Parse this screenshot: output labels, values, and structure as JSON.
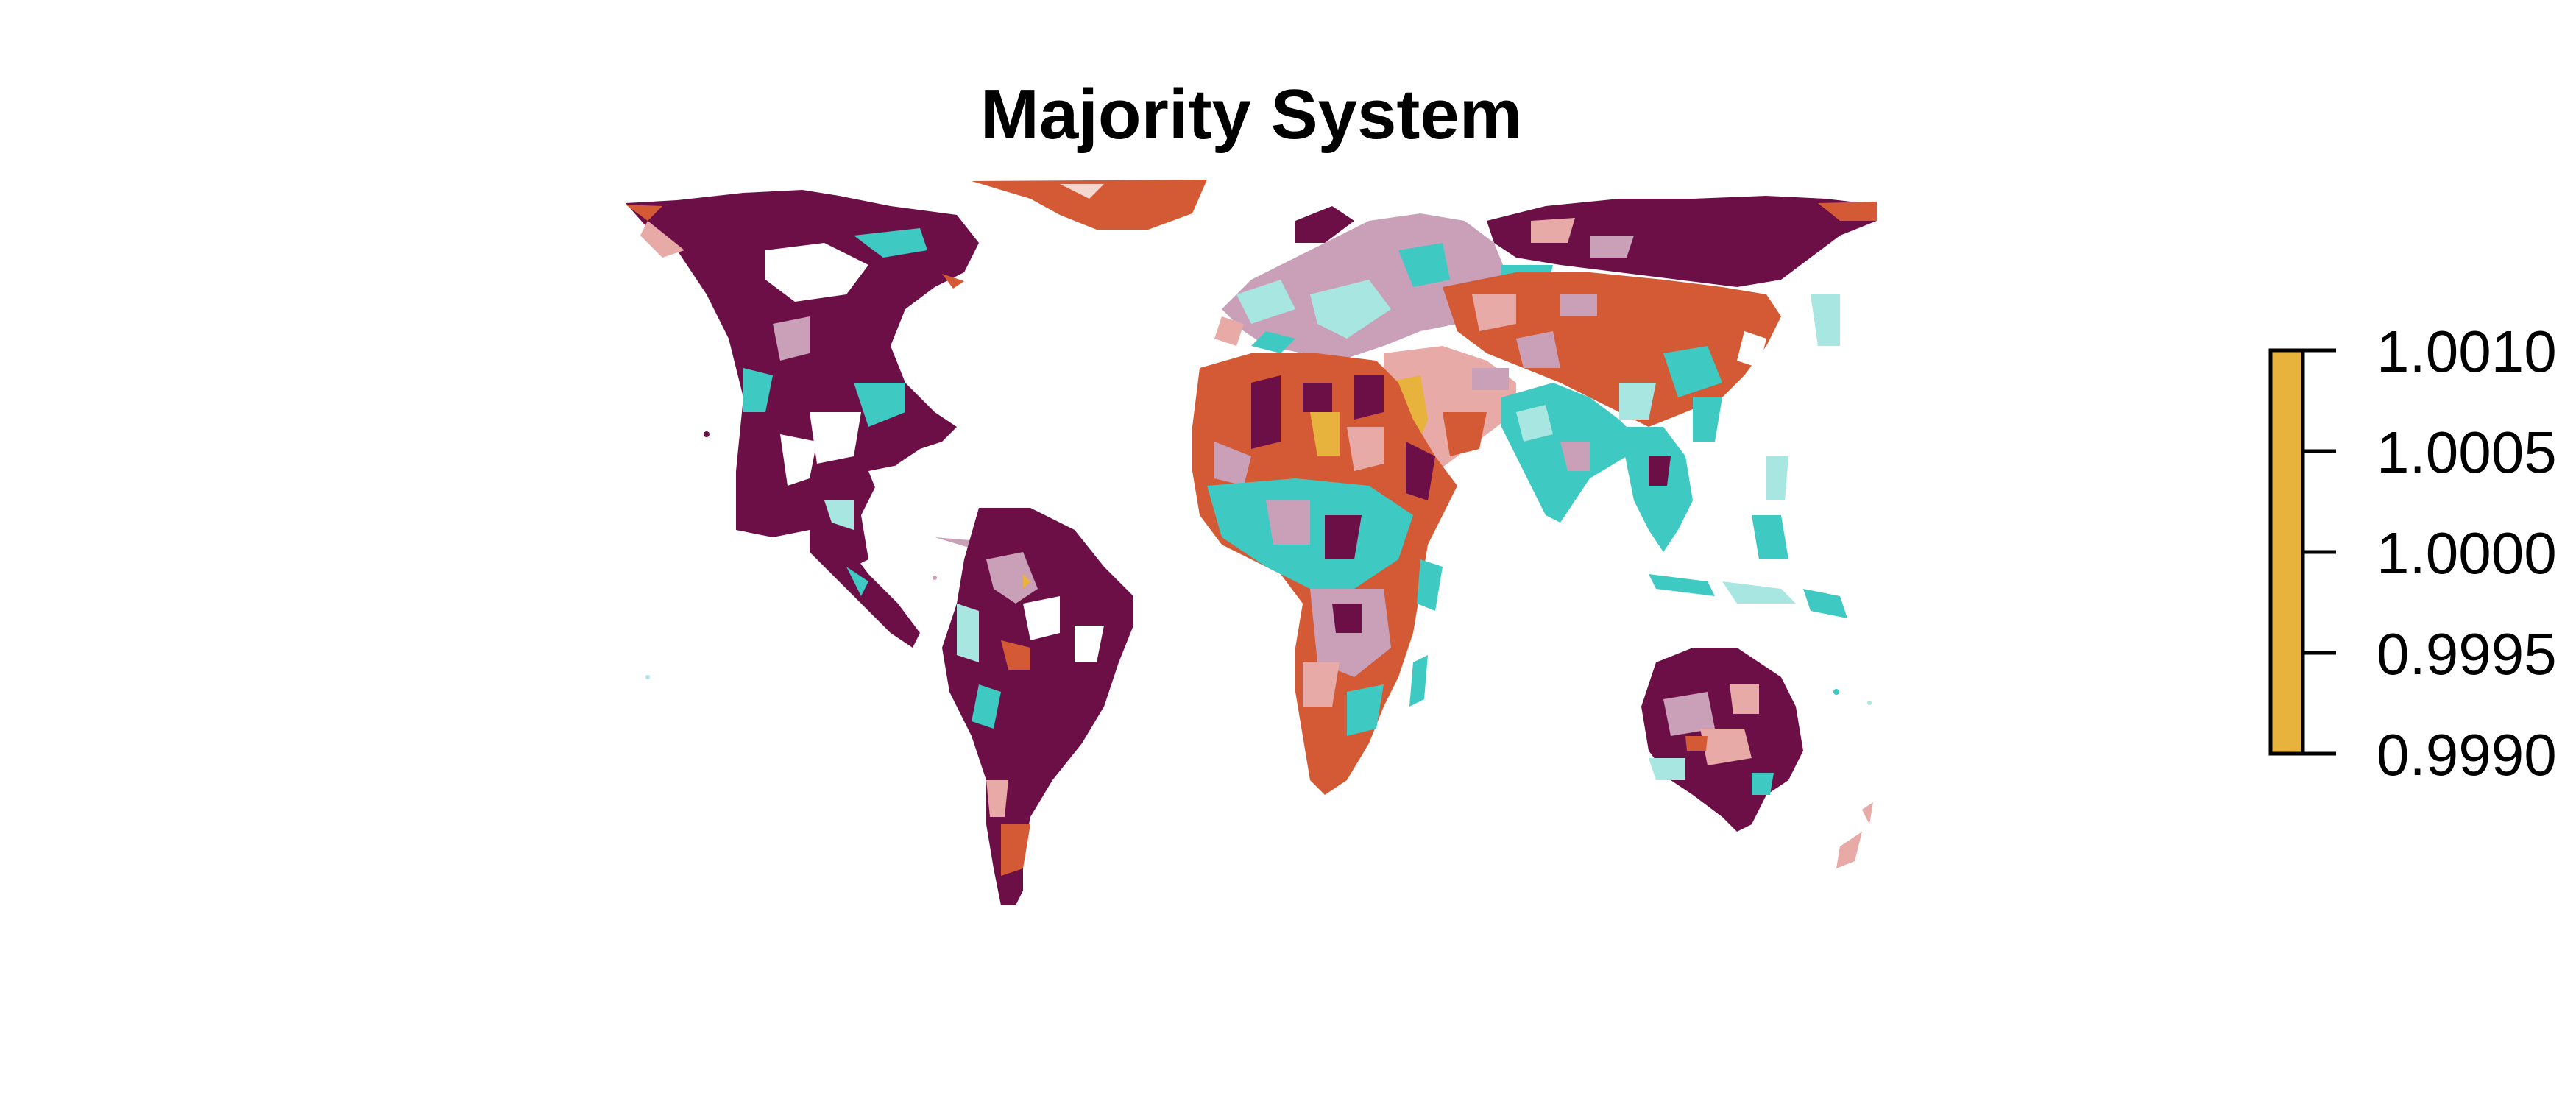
{
  "title": "Majority System",
  "colors": {
    "maroon": "#6b0f46",
    "orange": "#d35a35",
    "teal": "#3ec9c3",
    "light_teal": "#a8e6e2",
    "pink": "#e8aaa6",
    "mauve": "#c9a0b8",
    "yellow": "#e8b33c",
    "background": "#ffffff"
  },
  "legend": {
    "type": "colorbar",
    "fill_color": "#e8b33c",
    "ticks": [
      "1.0010",
      "1.0005",
      "1.0000",
      "0.9995",
      "0.9990"
    ],
    "range": [
      0.999,
      1.001
    ]
  }
}
